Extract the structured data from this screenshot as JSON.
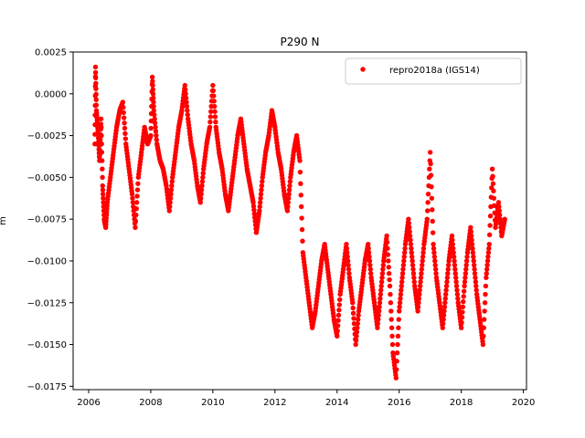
{
  "chart_data": {
    "type": "scatter",
    "title": "P290 N",
    "xlabel": "",
    "ylabel": "m",
    "xlim": [
      2005.5,
      2020.1
    ],
    "ylim": [
      -0.0177,
      0.0025
    ],
    "x_ticks": [
      2006,
      2008,
      2010,
      2012,
      2014,
      2016,
      2018,
      2020
    ],
    "x_tick_labels": [
      "2006",
      "2008",
      "2010",
      "2012",
      "2014",
      "2016",
      "2018",
      "2020"
    ],
    "y_ticks": [
      0.0025,
      0.0,
      -0.0025,
      -0.005,
      -0.0075,
      -0.01,
      -0.0125,
      -0.015,
      -0.0175
    ],
    "y_tick_labels": [
      "0.0025",
      "0.0000",
      "−0.0025",
      "−0.0050",
      "−0.0075",
      "−0.0100",
      "−0.0125",
      "−0.0150",
      "−0.0175"
    ],
    "grid": false,
    "legend_position": "top-right",
    "series": [
      {
        "name": "repro2018a (IGS14)",
        "color": "#ff0000",
        "marker": "circle",
        "points": [
          [
            2006.2,
            -0.003
          ],
          [
            2006.22,
            0.0016
          ],
          [
            2006.25,
            -0.001
          ],
          [
            2006.3,
            -0.0022
          ],
          [
            2006.35,
            -0.004
          ],
          [
            2006.4,
            -0.0015
          ],
          [
            2006.45,
            -0.0055
          ],
          [
            2006.5,
            -0.0075
          ],
          [
            2006.55,
            -0.008
          ],
          [
            2006.6,
            -0.0065
          ],
          [
            2006.7,
            -0.005
          ],
          [
            2006.8,
            -0.0035
          ],
          [
            2006.9,
            -0.002
          ],
          [
            2007.0,
            -0.001
          ],
          [
            2007.1,
            -0.0005
          ],
          [
            2007.2,
            -0.003
          ],
          [
            2007.3,
            -0.0045
          ],
          [
            2007.4,
            -0.006
          ],
          [
            2007.5,
            -0.008
          ],
          [
            2007.6,
            -0.005
          ],
          [
            2007.7,
            -0.0035
          ],
          [
            2007.8,
            -0.002
          ],
          [
            2007.9,
            -0.003
          ],
          [
            2008.0,
            -0.0025
          ],
          [
            2008.05,
            0.001
          ],
          [
            2008.1,
            -0.001
          ],
          [
            2008.2,
            -0.003
          ],
          [
            2008.3,
            -0.004
          ],
          [
            2008.4,
            -0.0045
          ],
          [
            2008.5,
            -0.0055
          ],
          [
            2008.6,
            -0.007
          ],
          [
            2008.7,
            -0.005
          ],
          [
            2008.8,
            -0.0035
          ],
          [
            2008.9,
            -0.002
          ],
          [
            2009.0,
            -0.001
          ],
          [
            2009.1,
            0.0005
          ],
          [
            2009.2,
            -0.0015
          ],
          [
            2009.3,
            -0.003
          ],
          [
            2009.4,
            -0.004
          ],
          [
            2009.5,
            -0.0055
          ],
          [
            2009.6,
            -0.0065
          ],
          [
            2009.7,
            -0.0045
          ],
          [
            2009.8,
            -0.003
          ],
          [
            2009.9,
            -0.002
          ],
          [
            2010.0,
            0.0005
          ],
          [
            2010.1,
            -0.002
          ],
          [
            2010.2,
            -0.0035
          ],
          [
            2010.3,
            -0.0045
          ],
          [
            2010.4,
            -0.006
          ],
          [
            2010.5,
            -0.007
          ],
          [
            2010.6,
            -0.0055
          ],
          [
            2010.7,
            -0.004
          ],
          [
            2010.8,
            -0.0025
          ],
          [
            2010.9,
            -0.0015
          ],
          [
            2011.0,
            -0.003
          ],
          [
            2011.1,
            -0.0045
          ],
          [
            2011.2,
            -0.0055
          ],
          [
            2011.3,
            -0.0065
          ],
          [
            2011.4,
            -0.0083
          ],
          [
            2011.5,
            -0.007
          ],
          [
            2011.6,
            -0.005
          ],
          [
            2011.7,
            -0.0035
          ],
          [
            2011.8,
            -0.0025
          ],
          [
            2011.9,
            -0.001
          ],
          [
            2012.0,
            -0.002
          ],
          [
            2012.1,
            -0.0035
          ],
          [
            2012.2,
            -0.0045
          ],
          [
            2012.3,
            -0.006
          ],
          [
            2012.4,
            -0.007
          ],
          [
            2012.5,
            -0.005
          ],
          [
            2012.6,
            -0.0035
          ],
          [
            2012.7,
            -0.0025
          ],
          [
            2012.8,
            -0.004
          ],
          [
            2012.9,
            -0.0095
          ],
          [
            2013.0,
            -0.011
          ],
          [
            2013.1,
            -0.0125
          ],
          [
            2013.2,
            -0.014
          ],
          [
            2013.3,
            -0.013
          ],
          [
            2013.4,
            -0.0115
          ],
          [
            2013.5,
            -0.01
          ],
          [
            2013.6,
            -0.009
          ],
          [
            2013.7,
            -0.0105
          ],
          [
            2013.8,
            -0.012
          ],
          [
            2013.9,
            -0.0135
          ],
          [
            2014.0,
            -0.0145
          ],
          [
            2014.1,
            -0.012
          ],
          [
            2014.2,
            -0.0105
          ],
          [
            2014.3,
            -0.009
          ],
          [
            2014.4,
            -0.011
          ],
          [
            2014.5,
            -0.0125
          ],
          [
            2014.6,
            -0.015
          ],
          [
            2014.7,
            -0.013
          ],
          [
            2014.8,
            -0.0115
          ],
          [
            2014.9,
            -0.01
          ],
          [
            2015.0,
            -0.009
          ],
          [
            2015.1,
            -0.011
          ],
          [
            2015.2,
            -0.0125
          ],
          [
            2015.3,
            -0.014
          ],
          [
            2015.4,
            -0.012
          ],
          [
            2015.5,
            -0.01
          ],
          [
            2015.6,
            -0.0085
          ],
          [
            2015.7,
            -0.0115
          ],
          [
            2015.8,
            -0.0155
          ],
          [
            2015.9,
            -0.017
          ],
          [
            2016.0,
            -0.013
          ],
          [
            2016.1,
            -0.011
          ],
          [
            2016.2,
            -0.009
          ],
          [
            2016.3,
            -0.0075
          ],
          [
            2016.4,
            -0.0095
          ],
          [
            2016.5,
            -0.0115
          ],
          [
            2016.6,
            -0.013
          ],
          [
            2016.7,
            -0.011
          ],
          [
            2016.8,
            -0.009
          ],
          [
            2016.9,
            -0.0075
          ],
          [
            2017.0,
            -0.0035
          ],
          [
            2017.1,
            -0.009
          ],
          [
            2017.2,
            -0.011
          ],
          [
            2017.3,
            -0.0125
          ],
          [
            2017.4,
            -0.014
          ],
          [
            2017.5,
            -0.012
          ],
          [
            2017.6,
            -0.01
          ],
          [
            2017.7,
            -0.0085
          ],
          [
            2017.8,
            -0.0105
          ],
          [
            2017.9,
            -0.0125
          ],
          [
            2018.0,
            -0.014
          ],
          [
            2018.1,
            -0.0115
          ],
          [
            2018.2,
            -0.0095
          ],
          [
            2018.3,
            -0.008
          ],
          [
            2018.4,
            -0.01
          ],
          [
            2018.5,
            -0.012
          ],
          [
            2018.6,
            -0.0135
          ],
          [
            2018.7,
            -0.015
          ],
          [
            2018.8,
            -0.011
          ],
          [
            2018.9,
            -0.009
          ],
          [
            2019.0,
            -0.0045
          ],
          [
            2019.1,
            -0.008
          ],
          [
            2019.2,
            -0.0065
          ],
          [
            2019.3,
            -0.0085
          ],
          [
            2019.4,
            -0.0075
          ]
        ]
      }
    ]
  }
}
